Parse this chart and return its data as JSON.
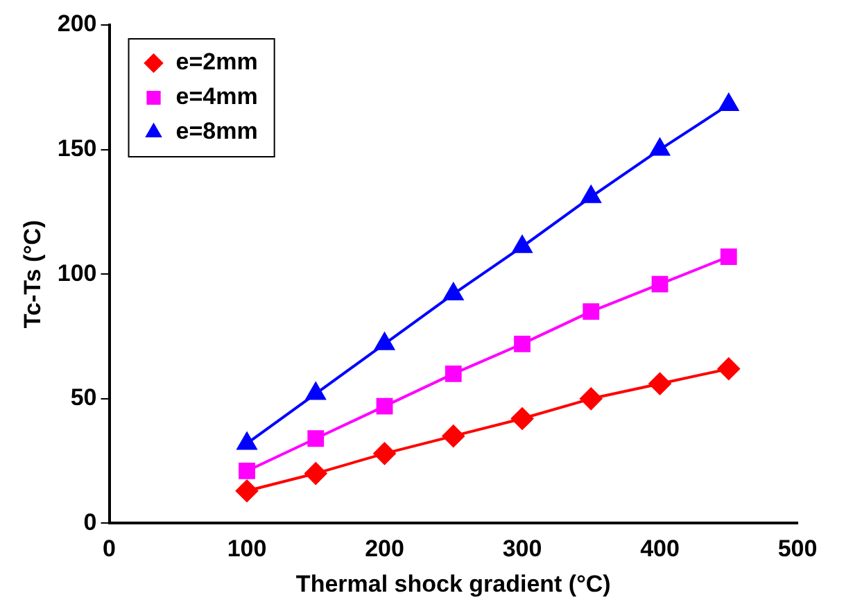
{
  "chart_data": {
    "type": "line",
    "xlabel": "Thermal shock gradient (°C)",
    "ylabel": "Tc-Ts (°C)",
    "x": [
      100,
      150,
      200,
      250,
      300,
      350,
      400,
      450
    ],
    "series": [
      {
        "name": "e=2mm",
        "color": "#ff0000",
        "marker": "diamond",
        "values": [
          13,
          20,
          28,
          35,
          42,
          50,
          56,
          62
        ]
      },
      {
        "name": "e=4mm",
        "color": "#ff00ff",
        "marker": "square",
        "values": [
          21,
          34,
          47,
          60,
          72,
          85,
          96,
          107
        ]
      },
      {
        "name": "e=8mm",
        "color": "#0000ff",
        "marker": "triangle",
        "values": [
          32,
          52,
          72,
          92,
          111,
          131,
          150,
          168
        ]
      }
    ],
    "xlim": [
      0,
      500
    ],
    "xticks": [
      0,
      100,
      200,
      300,
      400,
      500
    ],
    "ylim": [
      0,
      200
    ],
    "yticks": [
      0,
      50,
      100,
      150,
      200
    ],
    "grid": false,
    "legend": "top left",
    "line_style": "solid"
  }
}
